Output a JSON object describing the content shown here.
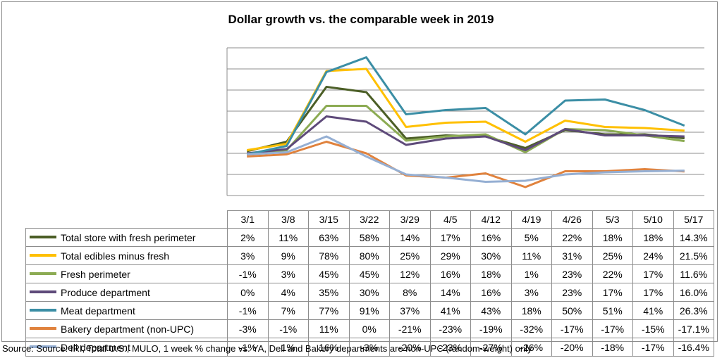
{
  "chart_data": {
    "type": "line",
    "title": "Dollar growth vs. the comparable week in 2019",
    "categories": [
      "3/1",
      "3/8",
      "3/15",
      "3/22",
      "3/29",
      "4/5",
      "4/12",
      "4/19",
      "4/26",
      "5/3",
      "5/10",
      "5/17"
    ],
    "ylim": [
      -40,
      100
    ],
    "grid": true,
    "legend": "table-below",
    "series": [
      {
        "name": "Total store with fresh perimeter",
        "color": "#4b5e26",
        "values": [
          2,
          11,
          63,
          58,
          14,
          17,
          16,
          5,
          22,
          18,
          18,
          14.3
        ],
        "labels": [
          "2%",
          "11%",
          "63%",
          "58%",
          "14%",
          "17%",
          "16%",
          "5%",
          "22%",
          "18%",
          "18%",
          "14.3%"
        ]
      },
      {
        "name": "Total edibles minus fresh",
        "color": "#ffc000",
        "values": [
          3,
          9,
          78,
          80,
          25,
          29,
          30,
          11,
          31,
          25,
          24,
          21.5
        ],
        "labels": [
          "3%",
          "9%",
          "78%",
          "80%",
          "25%",
          "29%",
          "30%",
          "11%",
          "31%",
          "25%",
          "24%",
          "21.5%"
        ]
      },
      {
        "name": "Fresh perimeter",
        "color": "#8cab53",
        "values": [
          -1,
          3,
          45,
          45,
          12,
          16,
          18,
          1,
          23,
          22,
          17,
          11.6
        ],
        "labels": [
          "-1%",
          "3%",
          "45%",
          "45%",
          "12%",
          "16%",
          "18%",
          "1%",
          "23%",
          "22%",
          "17%",
          "11.6%"
        ]
      },
      {
        "name": "Produce department",
        "color": "#5e4a7a",
        "values": [
          0,
          4,
          35,
          30,
          8,
          14,
          16,
          3,
          23,
          17,
          17,
          16.0
        ],
        "labels": [
          "0%",
          "4%",
          "35%",
          "30%",
          "8%",
          "14%",
          "16%",
          "3%",
          "23%",
          "17%",
          "17%",
          "16.0%"
        ]
      },
      {
        "name": "Meat department",
        "color": "#3b8ea5",
        "values": [
          -1,
          7,
          77,
          91,
          37,
          41,
          43,
          18,
          50,
          51,
          41,
          26.3
        ],
        "labels": [
          "-1%",
          "7%",
          "77%",
          "91%",
          "37%",
          "41%",
          "43%",
          "18%",
          "50%",
          "51%",
          "41%",
          "26.3%"
        ]
      },
      {
        "name": "Bakery department (non-UPC)",
        "color": "#e0823d",
        "values": [
          -3,
          -1,
          11,
          0,
          -21,
          -23,
          -19,
          -32,
          -17,
          -17,
          -15,
          -17.1
        ],
        "labels": [
          "-3%",
          "-1%",
          "11%",
          "0%",
          "-21%",
          "-23%",
          "-19%",
          "-32%",
          "-17%",
          "-17%",
          "-15%",
          "-17.1%"
        ]
      },
      {
        "name": "Deli department",
        "color": "#95afd3",
        "values": [
          -1,
          1,
          16,
          -3,
          -20,
          -23,
          -27,
          -26,
          -20,
          -18,
          -17,
          -16.4
        ],
        "labels": [
          "-1%",
          "1%",
          "16%",
          "-3%",
          "-20%",
          "-23%",
          "-27%",
          "-26%",
          "-20%",
          "-18%",
          "-17%",
          "-16.4%"
        ]
      }
    ]
  },
  "source_note": "Source: Source: IRI, Total U.S., MULO, 1 week % change vs. YA, Deli and Bakery departments are non-UPC (random-weight) only"
}
